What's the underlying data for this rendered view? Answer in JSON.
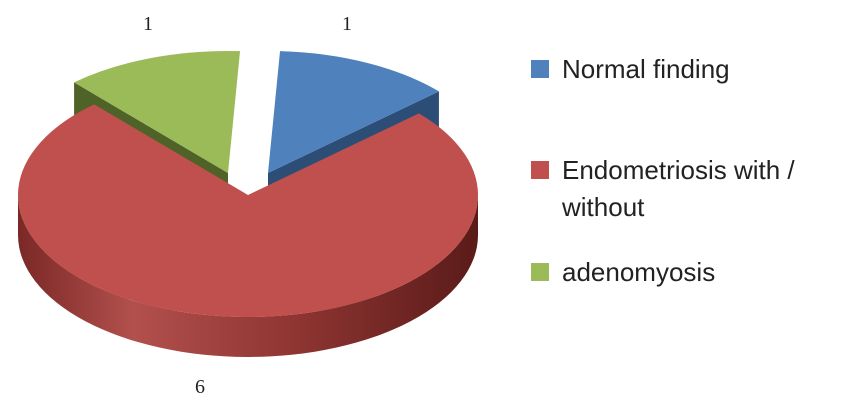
{
  "chart_data": {
    "type": "pie",
    "style": "3d-exploded",
    "slices": [
      {
        "label": "Normal finding",
        "value": 1,
        "color": "#4f81bd"
      },
      {
        "label": "Endometriosis with / without",
        "value": 6,
        "color": "#c0504d"
      },
      {
        "label": "adenomyosis",
        "value": 1,
        "color": "#9bbb59"
      }
    ],
    "legend_position": "right",
    "data_labels": [
      "1",
      "6",
      "1"
    ]
  }
}
